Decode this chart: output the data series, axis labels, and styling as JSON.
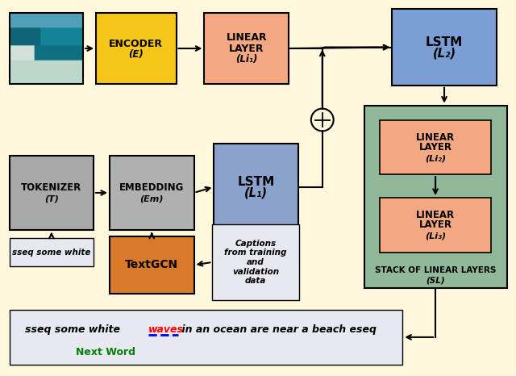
{
  "bg_color": "#FFF8DC",
  "box_colors": {
    "encoder": "#F5C518",
    "linear_top": "#F4A882",
    "lstm2": "#7B9FD4",
    "tokenizer": "#A8A8A8",
    "embedding": "#B0B0B0",
    "lstm1": "#8BA3CC",
    "textgcn": "#D97A2A",
    "stack_bg": "#90B899",
    "li2": "#F4A882",
    "li3": "#F4A882",
    "output_box": "#E8E8F0",
    "caption_box": "#E8E8F0",
    "sseq_box": "#E8E8F0"
  },
  "caption_text": "Captions\nfrom training\nand\nvalidation\ndata",
  "sseq_text": "sseq some white",
  "next_word": "Next Word"
}
